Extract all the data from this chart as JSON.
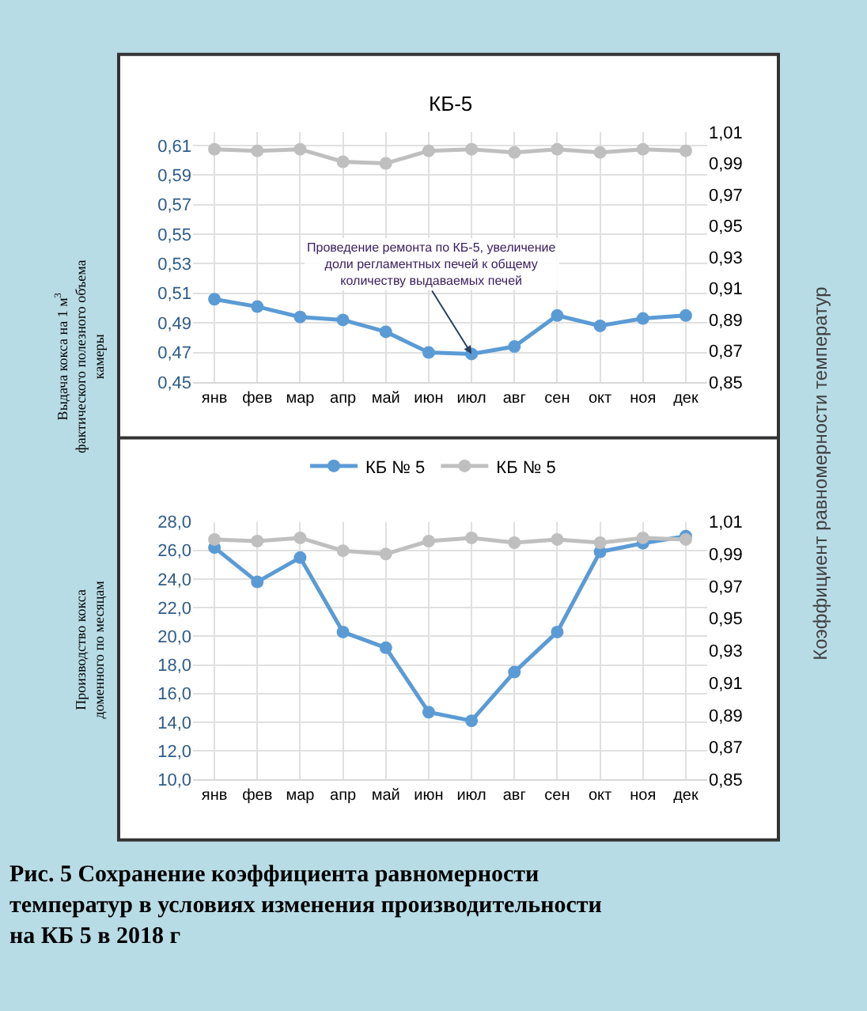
{
  "chart_data": [
    {
      "type": "line",
      "title": "КБ-5",
      "ylabel": "Выдача кокса на 1 м$^{3}$ фактического полезного объема камеры",
      "categories": [
        "янв",
        "фев",
        "мар",
        "апр",
        "май",
        "июн",
        "июл",
        "авг",
        "сен",
        "окт",
        "ноя",
        "дек"
      ],
      "series": [
        {
          "color": "#5b9bd5",
          "values": [
            0.506,
            0.501,
            0.494,
            0.492,
            0.484,
            0.47,
            0.469,
            0.474,
            0.495,
            0.488,
            0.493,
            0.495
          ]
        },
        {
          "color": "#bfbfbf",
          "axis": "y2",
          "values": [
            0.999,
            0.998,
            0.999,
            0.991,
            0.99,
            0.998,
            0.999,
            0.997,
            0.999,
            0.997,
            0.999,
            0.998
          ]
        }
      ],
      "ylim": [
        0.45,
        0.619
      ],
      "yticks": [
        {
          "value": 0.45,
          "label": "0,45"
        },
        {
          "value": 0.47,
          "label": "0,47"
        },
        {
          "value": 0.49,
          "label": "0,49"
        },
        {
          "value": 0.51,
          "label": "0,51"
        },
        {
          "value": 0.53,
          "label": "0,53"
        },
        {
          "value": 0.55,
          "label": "0,55"
        },
        {
          "value": 0.57,
          "label": "0,57"
        },
        {
          "value": 0.59,
          "label": "0,59"
        },
        {
          "value": 0.61,
          "label": "0,61"
        }
      ],
      "y2lim": [
        0.85,
        1.01
      ],
      "y2ticks": [
        {
          "value": 0.85,
          "label": "0,85"
        },
        {
          "value": 0.87,
          "label": "0,87"
        },
        {
          "value": 0.89,
          "label": "0,89"
        },
        {
          "value": 0.91,
          "label": "0,91"
        },
        {
          "value": 0.93,
          "label": "0,93"
        },
        {
          "value": 0.95,
          "label": "0,95"
        },
        {
          "value": 0.97,
          "label": "0,97"
        },
        {
          "value": 0.99,
          "label": "0,99"
        },
        {
          "value": 1.01,
          "label": "1,01"
        }
      ],
      "annotations": [
        {
          "text": "Проведение ремонта по КБ-5, увеличение доли регламентных печей к общему количеству выдаваемых печей",
          "x": "июл",
          "y": 0.469
        }
      ],
      "grid": true,
      "marker": "circle",
      "line_style": "solid",
      "legend": false
    },
    {
      "type": "line",
      "ylabel": "Производство кокса доменного по месяцам",
      "y2label": "Коэффициент равномерности температур",
      "categories": [
        "янв",
        "фев",
        "мар",
        "апр",
        "май",
        "июн",
        "июл",
        "авг",
        "сен",
        "окт",
        "ноя",
        "дек"
      ],
      "series": [
        {
          "name": "КБ № 5",
          "color": "#5b9bd5",
          "values": [
            26.2,
            23.8,
            25.5,
            20.3,
            19.2,
            14.7,
            14.1,
            17.5,
            20.3,
            25.9,
            26.5,
            27.0
          ]
        },
        {
          "name": "КБ № 5",
          "color": "#bfbfbf",
          "axis": "y2",
          "values": [
            0.999,
            0.998,
            1.0,
            0.992,
            0.99,
            0.998,
            1.0,
            0.997,
            0.999,
            0.997,
            1.0,
            0.999
          ]
        }
      ],
      "ylim": [
        10,
        28
      ],
      "yticks": [
        {
          "value": 10,
          "label": "10,0"
        },
        {
          "value": 12,
          "label": "12,0"
        },
        {
          "value": 14,
          "label": "14,0"
        },
        {
          "value": 16,
          "label": "16,0"
        },
        {
          "value": 18,
          "label": "18,0"
        },
        {
          "value": 20,
          "label": "20,0"
        },
        {
          "value": 22,
          "label": "22,0"
        },
        {
          "value": 24,
          "label": "24,0"
        },
        {
          "value": 26,
          "label": "26,0"
        },
        {
          "value": 28,
          "label": "28,0"
        }
      ],
      "y2lim": [
        0.85,
        1.01
      ],
      "y2ticks": [
        {
          "value": 0.85,
          "label": "0,85"
        },
        {
          "value": 0.87,
          "label": "0,87"
        },
        {
          "value": 0.89,
          "label": "0,89"
        },
        {
          "value": 0.91,
          "label": "0,91"
        },
        {
          "value": 0.93,
          "label": "0,93"
        },
        {
          "value": 0.95,
          "label": "0,95"
        },
        {
          "value": 0.97,
          "label": "0,97"
        },
        {
          "value": 0.99,
          "label": "0,99"
        },
        {
          "value": 1.01,
          "label": "1,01"
        }
      ],
      "annotations": [
        "Рис. 5 Сохранение коэффициента равномерности температур в условиях изменения производительности на КБ 5 в 2018 г"
      ],
      "grid": true,
      "marker": "circle",
      "line_style": "solid",
      "legend": "top"
    }
  ]
}
